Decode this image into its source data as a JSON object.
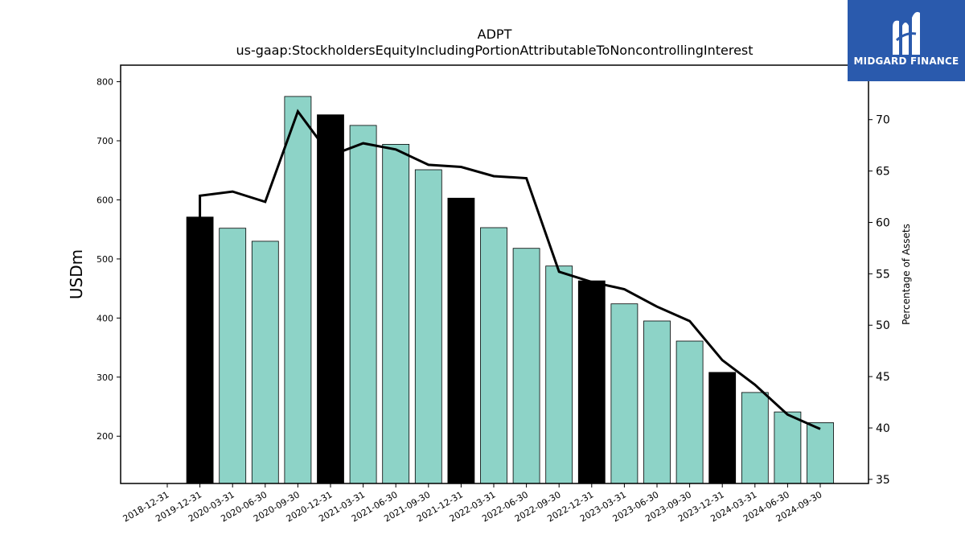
{
  "chart_data": {
    "type": "bar",
    "title": "ADPT",
    "subtitle": "us-gaap:StockholdersEquityIncludingPortionAttributableToNoncontrollingInterest",
    "ylabel": "USDm",
    "y2label": "Percentage of Assets",
    "ylim": [
      120,
      828
    ],
    "y2lim": [
      34.6,
      75.3
    ],
    "yticks": [
      200,
      300,
      400,
      500,
      600,
      700,
      800
    ],
    "y2ticks": [
      35,
      40,
      45,
      50,
      55,
      60,
      65,
      70
    ],
    "categories": [
      "2018-12-31",
      "2019-12-31",
      "2020-03-31",
      "2020-06-30",
      "2020-09-30",
      "2020-12-31",
      "2021-03-31",
      "2021-06-30",
      "2021-09-30",
      "2021-12-31",
      "2022-03-31",
      "2022-06-30",
      "2022-09-30",
      "2022-12-31",
      "2023-03-31",
      "2023-06-30",
      "2023-09-30",
      "2023-12-31",
      "2024-03-31",
      "2024-06-30",
      "2024-09-30"
    ],
    "series": [
      {
        "type": "bar",
        "values": [
          null,
          571,
          552,
          530,
          775,
          744,
          726,
          694,
          651,
          603,
          553,
          518,
          488,
          463,
          424,
          395,
          361,
          308,
          274,
          241,
          223
        ],
        "annual": [
          false,
          true,
          false,
          false,
          false,
          true,
          false,
          false,
          false,
          true,
          false,
          false,
          false,
          true,
          false,
          false,
          false,
          true,
          false,
          false,
          false
        ]
      },
      {
        "type": "line",
        "axis": "right",
        "values": [
          null,
          62.6,
          63.0,
          62.0,
          70.8,
          66.5,
          67.7,
          67.1,
          65.6,
          65.4,
          64.5,
          64.3,
          55.2,
          54.2,
          53.5,
          51.8,
          50.4,
          46.6,
          44.2,
          41.3,
          39.9
        ]
      }
    ],
    "colors": {
      "quarterly_bar": "#8dd3c7",
      "annual_bar": "#000000",
      "line": "#000000"
    },
    "grid": false,
    "legend": "none"
  },
  "logo": {
    "text": "MIDGARD FINANCE",
    "background": "#2a5aad"
  }
}
